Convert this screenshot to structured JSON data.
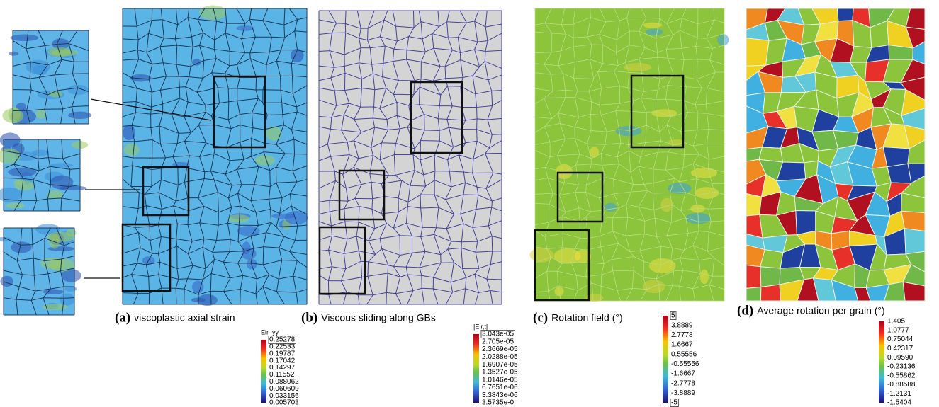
{
  "panels": [
    {
      "label": "(a)",
      "caption": "viscoplastic axial strain",
      "colorbar": {
        "title": "Eir_yy",
        "labels": [
          "0.25278",
          "0.22533",
          "0.19787",
          "0.17042",
          "0.14297",
          "0.11552",
          "0.088062",
          "0.060609",
          "0.033156",
          "0.005703"
        ]
      }
    },
    {
      "label": "(b)",
      "caption": "Viscous  sliding along GBs",
      "colorbar": {
        "title": "|Eir,t|",
        "labels": [
          "3.043e-05",
          "2.705e-05",
          "2.3669e-05",
          "2.0288e-05",
          "1.6907e-05",
          "1.3527e-05",
          "1.0146e-05",
          "6.7651e-06",
          "3.3843e-06",
          "3.5735e-0"
        ]
      }
    },
    {
      "label": "(c)",
      "caption": "Rotation field (°)",
      "colorbar": {
        "labels": [
          "5",
          "3.8889",
          "2.7778",
          "1.6667",
          "0.55556",
          "-0.55556",
          "-1.6667",
          "-2.7778",
          "-3.8889",
          "-5"
        ]
      }
    },
    {
      "label": "(d)",
      "caption": "Average rotation per grain (°)",
      "colorbar": {
        "labels": [
          "1.405",
          "1.0777",
          "0.75044",
          "0.42317",
          "0.09590",
          "-0.23136",
          "-0.55862",
          "-0.88588",
          "-1.2131",
          "-1.5404"
        ]
      }
    }
  ]
}
